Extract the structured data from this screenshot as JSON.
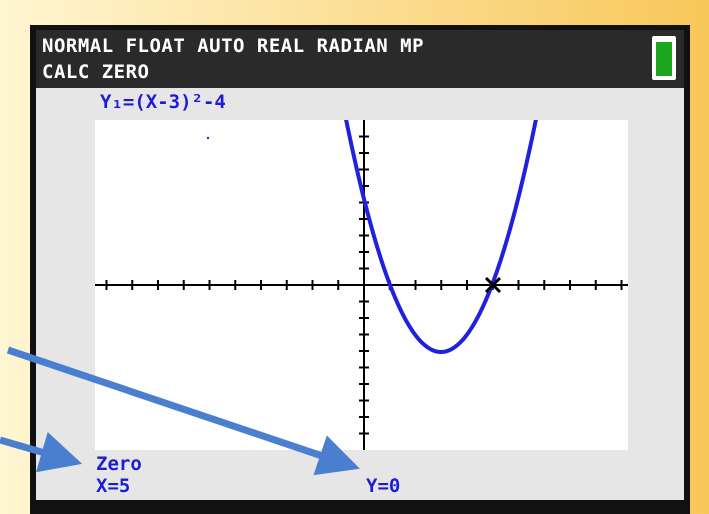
{
  "status_bar": {
    "mode_line": "NORMAL FLOAT AUTO REAL RADIAN MP",
    "menu_line": "CALC ZERO"
  },
  "graph": {
    "equation_label": "Y₁=(X-3)²-4"
  },
  "result": {
    "title": "Zero",
    "x_line": "X=5",
    "y_line": "Y=0"
  }
}
